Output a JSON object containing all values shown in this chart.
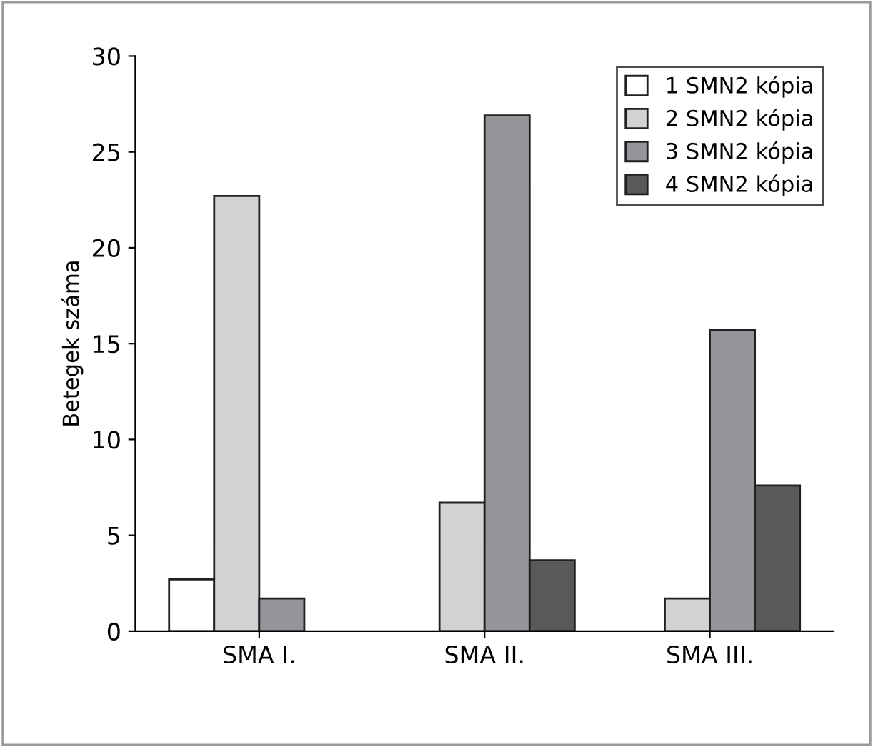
{
  "chart_data": {
    "type": "bar",
    "ylabel": "Betegek száma",
    "categories": [
      "SMA I.",
      "SMA II.",
      "SMA III."
    ],
    "series": [
      {
        "name": "1 SMN2 kópia",
        "color": "#ffffff",
        "values": [
          2.7,
          null,
          null
        ]
      },
      {
        "name": "2 SMN2 kópia",
        "color": "#d1d2d4",
        "values": [
          22.7,
          6.7,
          1.7
        ]
      },
      {
        "name": "3 SMN2 kópia",
        "color": "#939598",
        "values": [
          1.7,
          26.9,
          15.7
        ]
      },
      {
        "name": "4 SMN2 kópia",
        "color": "#58595b",
        "values": [
          null,
          3.7,
          7.6
        ]
      }
    ],
    "ylim": [
      0,
      30
    ],
    "yticks": [
      0,
      5,
      10,
      15,
      20,
      25,
      30
    ],
    "grid": false,
    "legend": "top right"
  }
}
